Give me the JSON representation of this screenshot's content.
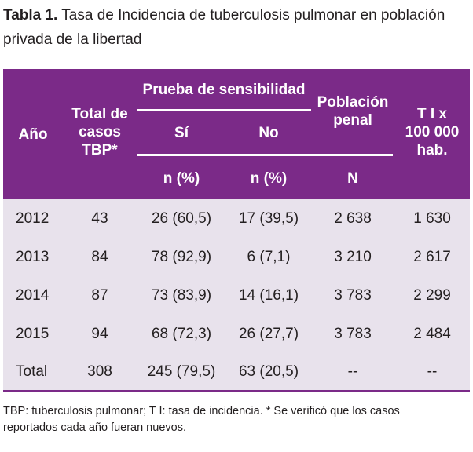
{
  "caption": {
    "label": "Tabla 1.",
    "line1": "Tasa de Incidencia de tuberculosis pulmonar en población",
    "line2": "privada de la libertad"
  },
  "header": {
    "year": "Año",
    "total_l1": "Total de",
    "total_l2": "casos",
    "total_l3": "TBP*",
    "group": "Prueba de sensibilidad",
    "si": "Sí",
    "no": "No",
    "si_unit": "n (%)",
    "no_unit": "n (%)",
    "pob_l1": "Población",
    "pob_l2": "penal",
    "pob_unit": "N",
    "ti_l1": "T I x",
    "ti_l2": "100 000",
    "ti_l3": "hab."
  },
  "rows": [
    {
      "year": "2012",
      "total": "43",
      "si": "26 (60,5)",
      "no": "17 (39,5)",
      "pob": "2 638",
      "ti": "1 630"
    },
    {
      "year": "2013",
      "total": "84",
      "si": "78 (92,9)",
      "no": "6 (7,1)",
      "pob": "3 210",
      "ti": "2 617"
    },
    {
      "year": "2014",
      "total": "87",
      "si": "73 (83,9)",
      "no": "14 (16,1)",
      "pob": "3 783",
      "ti": "2 299"
    },
    {
      "year": "2015",
      "total": "94",
      "si": "68 (72,3)",
      "no": "26 (27,7)",
      "pob": "3 783",
      "ti": "2 484"
    },
    {
      "year": "Total",
      "total": "308",
      "si": "245 (79,5)",
      "no": "63 (20,5)",
      "pob": "--",
      "ti": "--"
    }
  ],
  "note": {
    "line1": "TBP: tuberculosis pulmonar; T I: tasa de incidencia. * Se verificó que los casos",
    "line2": "reportados cada año fueran nuevos."
  },
  "colors": {
    "header_bg": "#7b2a88",
    "body_bg": "#e8e2ec"
  }
}
